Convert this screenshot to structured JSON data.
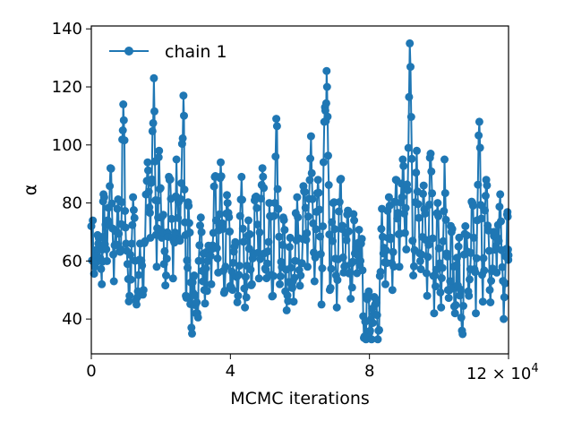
{
  "chart_data": {
    "type": "line",
    "title": "",
    "xlabel": "MCMC iterations",
    "ylabel": "α",
    "x_scale_note": "×10^4",
    "x_offset_label": "12 × 10",
    "x_offset_exponent": "4",
    "xlim": [
      0,
      12
    ],
    "ylim": [
      28,
      141
    ],
    "xticks": [
      0,
      4,
      8,
      12
    ],
    "xtick_labels": [
      "0",
      "4",
      "8",
      ""
    ],
    "yticks": [
      40,
      60,
      80,
      100,
      120,
      140
    ],
    "ytick_labels": [
      "40",
      "60",
      "80",
      "100",
      "120",
      "140"
    ],
    "grid": false,
    "legend_position": "top-left",
    "series": [
      {
        "name": "chain 1",
        "color": "#1f77b4",
        "marker": "circle",
        "keypoints": [
          [
            0.0,
            72
          ],
          [
            0.1,
            58
          ],
          [
            0.2,
            66
          ],
          [
            0.3,
            52
          ],
          [
            0.35,
            83
          ],
          [
            0.45,
            60
          ],
          [
            0.55,
            92
          ],
          [
            0.65,
            53
          ],
          [
            0.75,
            78
          ],
          [
            0.85,
            64
          ],
          [
            0.92,
            114
          ],
          [
            1.0,
            66
          ],
          [
            1.1,
            48
          ],
          [
            1.2,
            82
          ],
          [
            1.3,
            45
          ],
          [
            1.4,
            66
          ],
          [
            1.5,
            50
          ],
          [
            1.62,
            94
          ],
          [
            1.7,
            68
          ],
          [
            1.8,
            123
          ],
          [
            1.88,
            58
          ],
          [
            1.95,
            98
          ],
          [
            2.05,
            70
          ],
          [
            2.15,
            55
          ],
          [
            2.25,
            88
          ],
          [
            2.35,
            54
          ],
          [
            2.45,
            95
          ],
          [
            2.55,
            67
          ],
          [
            2.65,
            117
          ],
          [
            2.72,
            48
          ],
          [
            2.8,
            79
          ],
          [
            2.88,
            37
          ],
          [
            2.96,
            55
          ],
          [
            3.05,
            42
          ],
          [
            3.15,
            75
          ],
          [
            3.25,
            50
          ],
          [
            3.35,
            60
          ],
          [
            3.45,
            52
          ],
          [
            3.55,
            89
          ],
          [
            3.65,
            56
          ],
          [
            3.72,
            94
          ],
          [
            3.82,
            49
          ],
          [
            3.92,
            80
          ],
          [
            4.02,
            51
          ],
          [
            4.12,
            65
          ],
          [
            4.22,
            48
          ],
          [
            4.32,
            89
          ],
          [
            4.42,
            44
          ],
          [
            4.52,
            74
          ],
          [
            4.62,
            52
          ],
          [
            4.72,
            82
          ],
          [
            4.82,
            54
          ],
          [
            4.92,
            92
          ],
          [
            5.02,
            57
          ],
          [
            5.12,
            80
          ],
          [
            5.22,
            48
          ],
          [
            5.32,
            109
          ],
          [
            5.42,
            52
          ],
          [
            5.52,
            75
          ],
          [
            5.62,
            43
          ],
          [
            5.72,
            68
          ],
          [
            5.82,
            46
          ],
          [
            5.92,
            82
          ],
          [
            6.02,
            55
          ],
          [
            6.12,
            84
          ],
          [
            6.22,
            58
          ],
          [
            6.32,
            103
          ],
          [
            6.42,
            53
          ],
          [
            6.52,
            88
          ],
          [
            6.62,
            45
          ],
          [
            6.72,
            113
          ],
          [
            6.78,
            120
          ],
          [
            6.86,
            50
          ],
          [
            6.96,
            80
          ],
          [
            7.06,
            44
          ],
          [
            7.16,
            88
          ],
          [
            7.26,
            56
          ],
          [
            7.36,
            76
          ],
          [
            7.46,
            47
          ],
          [
            7.56,
            74
          ],
          [
            7.66,
            62
          ],
          [
            7.76,
            66
          ],
          [
            7.86,
            34
          ],
          [
            7.96,
            48
          ],
          [
            8.06,
            33
          ],
          [
            8.16,
            45
          ],
          [
            8.26,
            36
          ],
          [
            8.36,
            78
          ],
          [
            8.46,
            52
          ],
          [
            8.56,
            82
          ],
          [
            8.66,
            50
          ],
          [
            8.76,
            88
          ],
          [
            8.86,
            58
          ],
          [
            8.96,
            95
          ],
          [
            9.06,
            64
          ],
          [
            9.16,
            135
          ],
          [
            9.26,
            55
          ],
          [
            9.36,
            98
          ],
          [
            9.46,
            60
          ],
          [
            9.56,
            86
          ],
          [
            9.66,
            48
          ],
          [
            9.76,
            97
          ],
          [
            9.86,
            42
          ],
          [
            9.96,
            80
          ],
          [
            10.06,
            44
          ],
          [
            10.16,
            95
          ],
          [
            10.26,
            50
          ],
          [
            10.36,
            70
          ],
          [
            10.46,
            42
          ],
          [
            10.56,
            65
          ],
          [
            10.66,
            36
          ],
          [
            10.76,
            72
          ],
          [
            10.86,
            48
          ],
          [
            10.96,
            80
          ],
          [
            11.06,
            42
          ],
          [
            11.16,
            108
          ],
          [
            11.26,
            46
          ],
          [
            11.36,
            88
          ],
          [
            11.46,
            50
          ],
          [
            11.56,
            70
          ],
          [
            11.66,
            56
          ],
          [
            11.76,
            83
          ],
          [
            11.86,
            40
          ],
          [
            11.96,
            76
          ],
          [
            12.0,
            62
          ]
        ]
      }
    ]
  }
}
